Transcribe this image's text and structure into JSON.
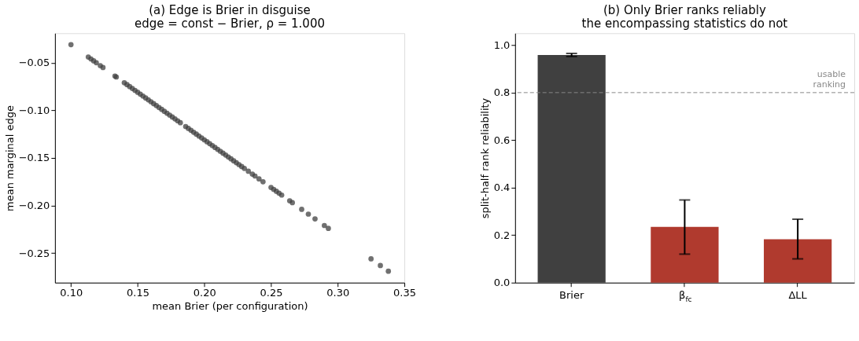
{
  "chart_data": [
    {
      "type": "scatter",
      "title": [
        "(a) Edge is Brier in disguise",
        "edge = const − Brier, ρ = 1.000"
      ],
      "xlabel": "mean Brier (per configuration)",
      "ylabel": "mean marginal edge",
      "marker": "circle",
      "grid": false,
      "xlim": [
        0.088,
        0.35
      ],
      "xticks": [
        {
          "value": 0.1,
          "label": "0.10"
        },
        0.15,
        {
          "value": 0.2,
          "label": "0.20"
        },
        0.25,
        {
          "value": 0.3,
          "label": "0.30"
        },
        0.35
      ],
      "ylim": [
        -0.281,
        -0.019
      ],
      "yticks": [
        -0.25,
        {
          "value": -0.2,
          "label": "−0.20"
        },
        -0.15,
        {
          "value": -0.1,
          "label": "−0.10"
        },
        -0.05
      ],
      "series": [
        {
          "color": "#404040",
          "x": [
            0.1,
            0.113,
            0.115,
            0.117,
            0.119,
            0.122,
            0.124,
            0.133,
            0.134,
            0.14,
            0.142,
            0.144,
            0.146,
            0.148,
            0.15,
            0.152,
            0.154,
            0.156,
            0.158,
            0.16,
            0.162,
            0.164,
            0.166,
            0.168,
            0.17,
            0.172,
            0.174,
            0.176,
            0.178,
            0.18,
            0.182,
            0.186,
            0.188,
            0.19,
            0.192,
            0.194,
            0.196,
            0.198,
            0.2,
            0.202,
            0.204,
            0.206,
            0.208,
            0.21,
            0.212,
            0.214,
            0.216,
            0.218,
            0.22,
            0.222,
            0.224,
            0.226,
            0.228,
            0.23,
            0.233,
            0.236,
            0.238,
            0.241,
            0.244,
            0.25,
            0.252,
            0.254,
            0.256,
            0.258,
            0.264,
            0.266,
            0.273,
            0.278,
            0.283,
            0.29,
            0.293,
            0.325,
            0.332,
            0.338
          ],
          "values": [
            -0.031,
            -0.044,
            -0.046,
            -0.048,
            -0.05,
            -0.053,
            -0.055,
            -0.064,
            -0.065,
            -0.071,
            -0.073,
            -0.075,
            -0.077,
            -0.079,
            -0.081,
            -0.083,
            -0.085,
            -0.087,
            -0.089,
            -0.091,
            -0.093,
            -0.095,
            -0.097,
            -0.099,
            -0.101,
            -0.103,
            -0.105,
            -0.107,
            -0.109,
            -0.111,
            -0.113,
            -0.117,
            -0.119,
            -0.121,
            -0.123,
            -0.125,
            -0.127,
            -0.129,
            -0.131,
            -0.133,
            -0.135,
            -0.137,
            -0.139,
            -0.141,
            -0.143,
            -0.145,
            -0.147,
            -0.149,
            -0.151,
            -0.153,
            -0.155,
            -0.157,
            -0.159,
            -0.161,
            -0.164,
            -0.167,
            -0.169,
            -0.172,
            -0.175,
            -0.181,
            -0.183,
            -0.185,
            -0.187,
            -0.189,
            -0.195,
            -0.197,
            -0.204,
            -0.209,
            -0.214,
            -0.221,
            -0.224,
            -0.256,
            -0.263,
            -0.269
          ]
        }
      ]
    },
    {
      "type": "bar",
      "title": [
        "(b) Only Brier ranks reliably",
        "the encompassing statistics do not"
      ],
      "ylabel": "split-half rank reliability",
      "grid": false,
      "categories": [
        "Brier",
        "β$_{fc}$",
        "ΔLL"
      ],
      "values": [
        0.958,
        0.235,
        0.183
      ],
      "colors": [
        "#404040",
        "#b03a2e",
        "#b03a2e"
      ],
      "errors": [
        [
          0.952,
          0.965
        ],
        [
          0.12,
          0.348
        ],
        [
          0.1,
          0.267
        ]
      ],
      "ylim": [
        0,
        1.05
      ],
      "yticks": [
        {
          "value": 0,
          "label": "0.0"
        },
        0.2,
        0.4,
        0.6,
        0.8,
        {
          "value": 1,
          "label": "1.0"
        }
      ],
      "ref_lines": [
        {
          "axis": "y",
          "value": 0.8,
          "label": "usable\nranking",
          "color": "#888888",
          "line_style": "dashed"
        }
      ]
    }
  ]
}
